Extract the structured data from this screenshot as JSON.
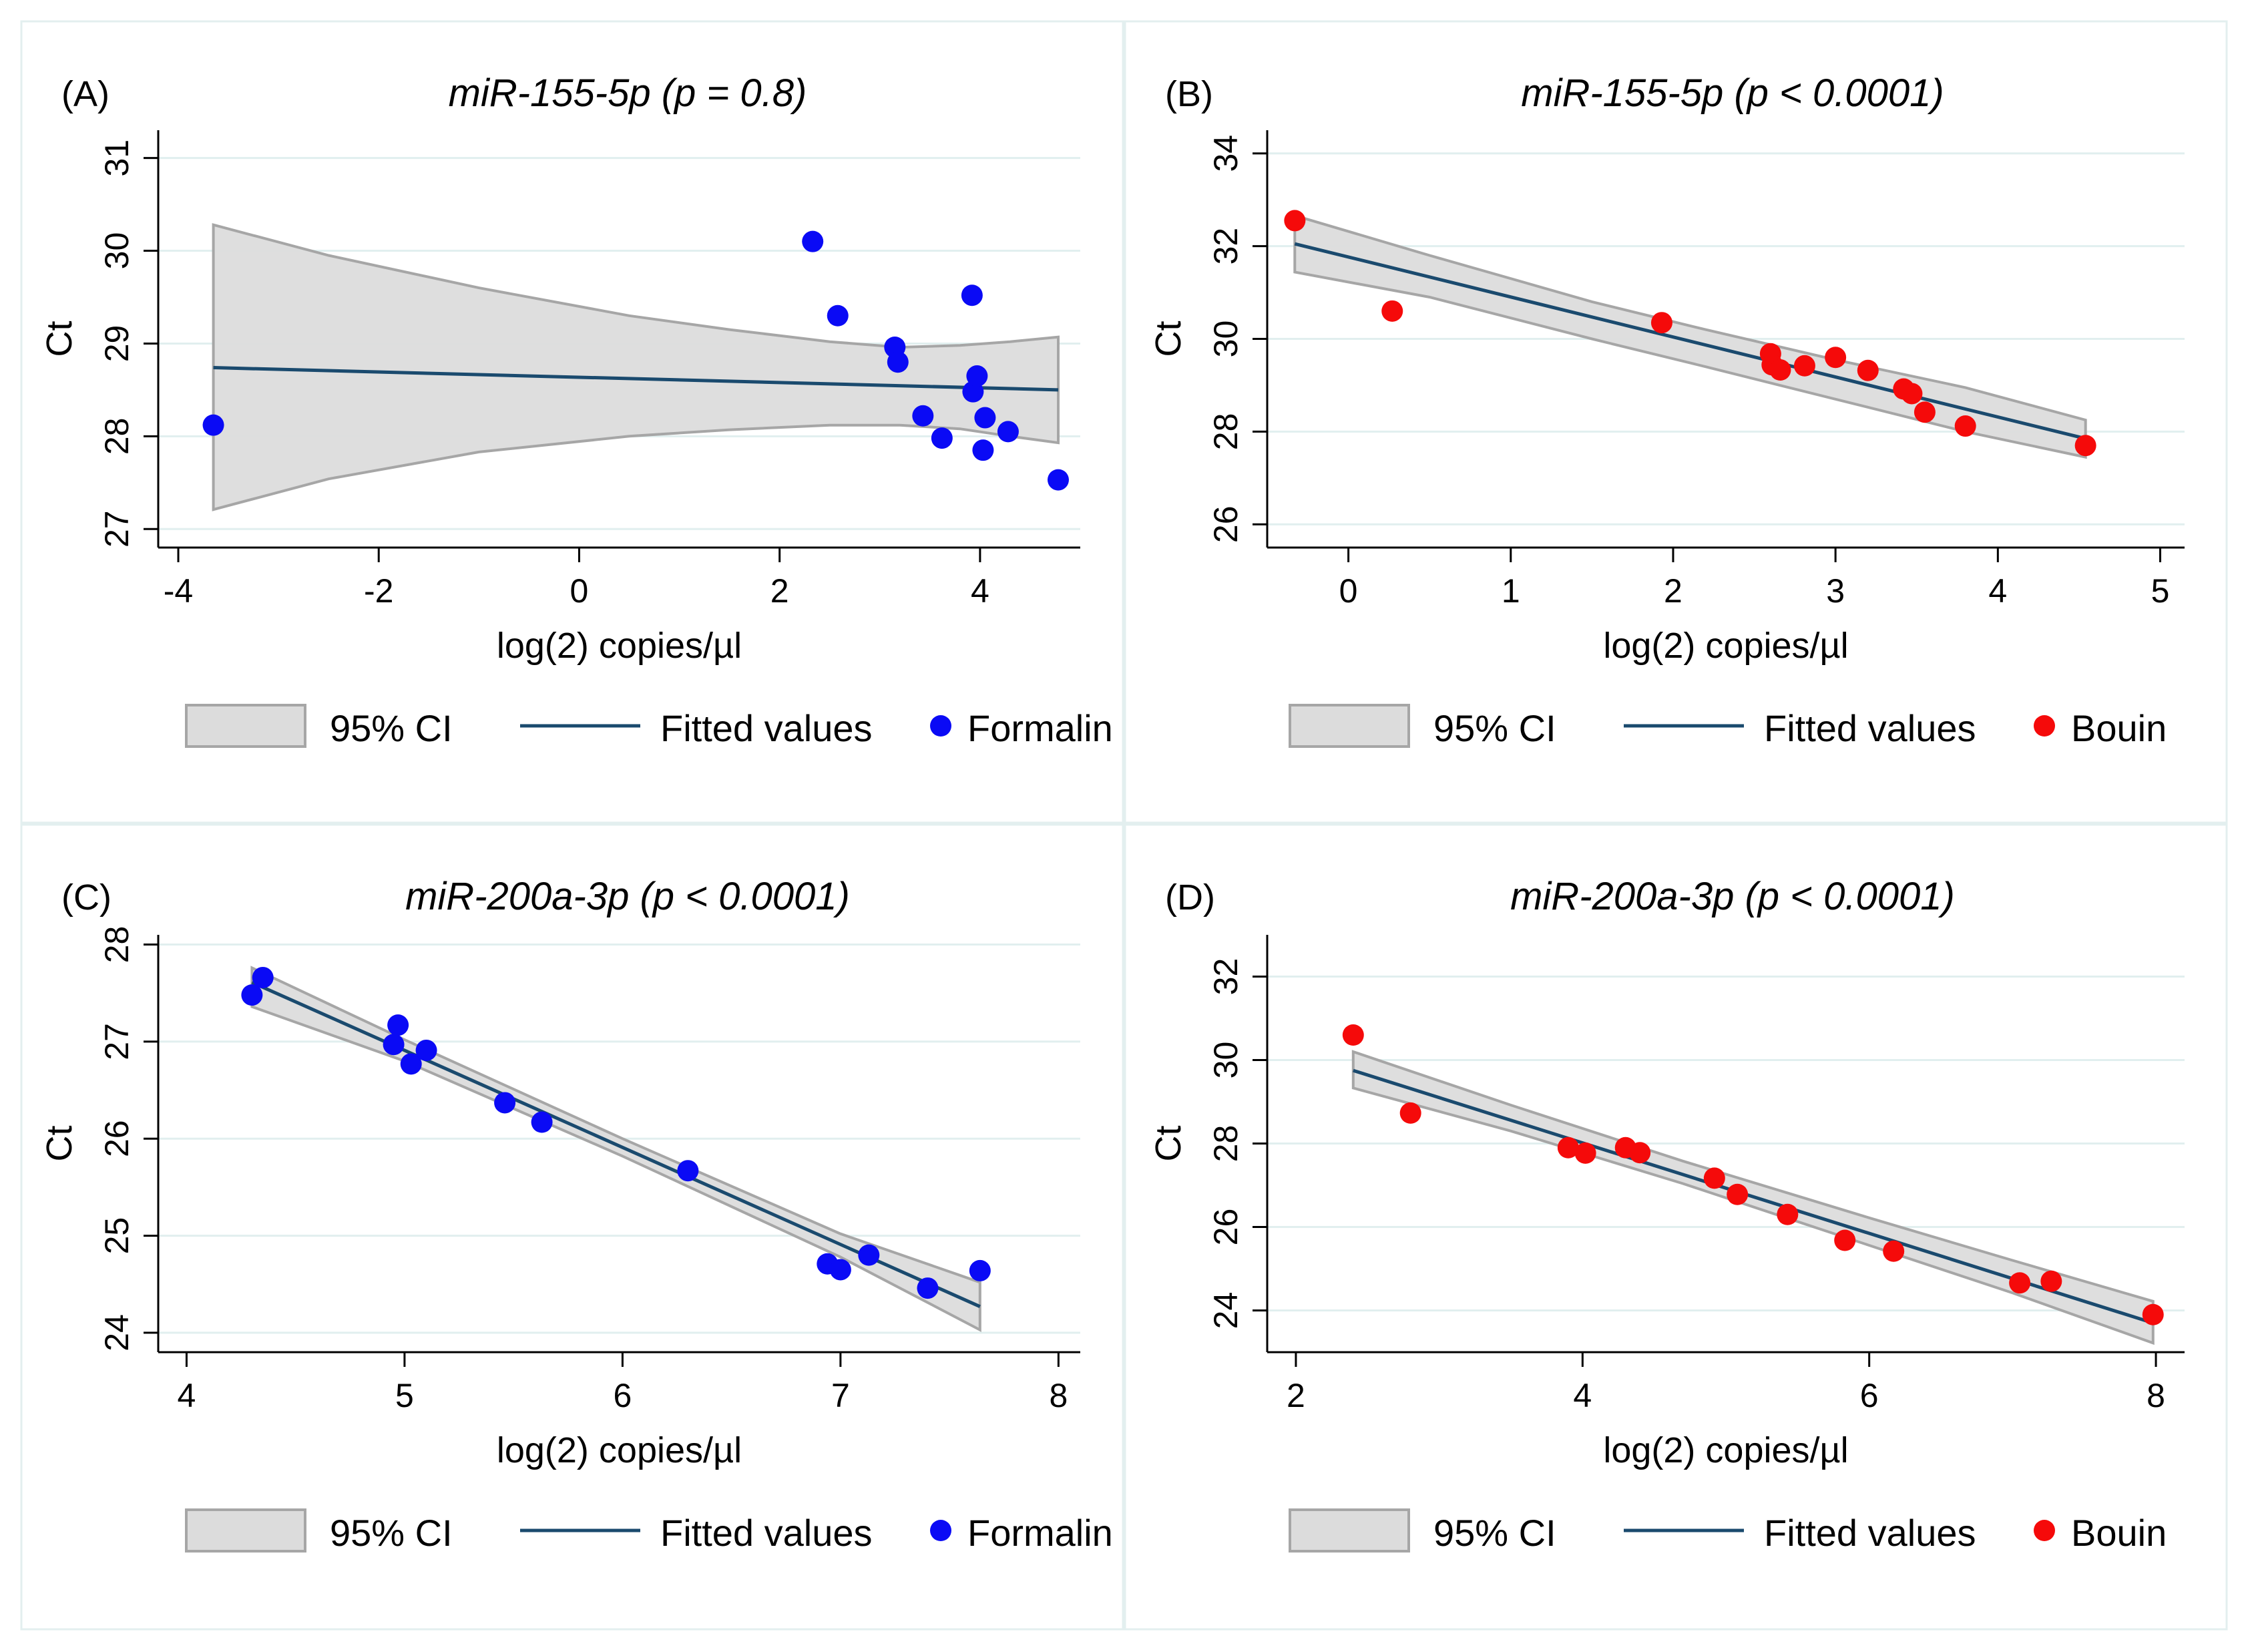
{
  "colors": {
    "formalin": "#0a0af5",
    "bouin": "#f50a0a",
    "fit": "#1a4a6e",
    "ci_fill": "#dcdcdc",
    "ci_stroke": "#a6a6a6"
  },
  "legend": {
    "ci_label": "95% CI",
    "fit_label": "Fitted values"
  },
  "chart_data": [
    {
      "type": "scatter",
      "panel_label": "(A)",
      "title": "miR-155-5p (p = 0.8)",
      "xlabel": "log(2) copies/µl",
      "ylabel": "Ct",
      "xlim": [
        -4.2,
        5.0
      ],
      "ylim": [
        26.8,
        31.3
      ],
      "xticks": [
        -4,
        -2,
        0,
        2,
        4
      ],
      "yticks": [
        27,
        28,
        29,
        30,
        31
      ],
      "series_name": "Formalin",
      "color": "#0a0af5",
      "x": [
        -3.65,
        2.33,
        2.58,
        3.15,
        3.18,
        3.43,
        3.62,
        3.92,
        3.93,
        3.97,
        4.03,
        4.05,
        4.28,
        4.78
      ],
      "y": [
        28.12,
        30.1,
        29.3,
        28.96,
        28.8,
        28.22,
        27.98,
        29.52,
        28.48,
        28.65,
        27.85,
        28.2,
        28.05,
        27.53
      ],
      "fit": {
        "x0": -3.65,
        "x1": 4.78,
        "y0": 28.74,
        "y1": 28.5
      },
      "ci": {
        "x": [
          -3.65,
          -2.5,
          -1.0,
          0.5,
          1.5,
          2.5,
          3.2,
          3.8,
          4.3,
          4.78
        ],
        "upper": [
          30.28,
          29.95,
          29.6,
          29.3,
          29.15,
          29.02,
          28.96,
          28.98,
          29.02,
          29.07
        ],
        "lower": [
          27.21,
          27.54,
          27.83,
          28.0,
          28.07,
          28.12,
          28.12,
          28.08,
          28.0,
          27.93
        ]
      }
    },
    {
      "type": "scatter",
      "panel_label": "(B)",
      "title": "miR-155-5p (p < 0.0001)",
      "xlabel": "log(2) copies/µl",
      "ylabel": "Ct",
      "xlim": [
        -0.5,
        5.15
      ],
      "ylim": [
        25.5,
        34.5
      ],
      "xticks": [
        0,
        1,
        2,
        3,
        4,
        5
      ],
      "yticks": [
        26,
        28,
        30,
        32,
        34
      ],
      "series_name": "Bouin",
      "color": "#f50a0a",
      "x": [
        -0.33,
        0.27,
        1.93,
        2.6,
        2.61,
        2.66,
        2.81,
        3.0,
        3.2,
        3.42,
        3.47,
        3.55,
        3.8,
        4.54
      ],
      "y": [
        32.55,
        30.6,
        30.35,
        29.68,
        29.44,
        29.33,
        29.42,
        29.6,
        29.32,
        28.92,
        28.82,
        28.42,
        28.12,
        27.7
      ],
      "fit": {
        "x0": -0.33,
        "x1": 4.54,
        "y0": 32.05,
        "y1": 27.85
      },
      "ci": {
        "x": [
          -0.33,
          0.5,
          1.5,
          2.2,
          3.0,
          3.8,
          4.54
        ],
        "upper": [
          32.66,
          31.8,
          30.8,
          30.2,
          29.55,
          28.95,
          28.25
        ],
        "lower": [
          31.44,
          30.9,
          30.0,
          29.4,
          28.7,
          28.0,
          27.45
        ]
      }
    },
    {
      "type": "scatter",
      "panel_label": "(C)",
      "title": "miR-200a-3p (p < 0.0001)",
      "xlabel": "log(2) copies/µl",
      "ylabel": "Ct",
      "xlim": [
        3.87,
        8.1
      ],
      "ylim": [
        23.8,
        28.1
      ],
      "xticks": [
        4,
        5,
        6,
        7,
        8
      ],
      "yticks": [
        24,
        25,
        26,
        27,
        28
      ],
      "series_name": "Formalin",
      "color": "#0a0af5",
      "x": [
        4.3,
        4.35,
        4.95,
        4.97,
        5.03,
        5.1,
        5.46,
        5.63,
        6.3,
        6.94,
        7.0,
        7.13,
        7.4,
        7.64
      ],
      "y": [
        27.48,
        27.66,
        26.97,
        27.17,
        26.77,
        26.91,
        26.37,
        26.17,
        25.67,
        24.71,
        24.65,
        24.8,
        24.46,
        24.64
      ],
      "fit": {
        "x0": 4.3,
        "x1": 7.64,
        "y0": 27.61,
        "y1": 24.27
      },
      "ci": {
        "x": [
          4.3,
          5.0,
          6.0,
          7.0,
          7.64
        ],
        "upper": [
          27.76,
          27.02,
          26.0,
          25.02,
          24.52
        ],
        "lower": [
          27.36,
          26.8,
          25.82,
          24.78,
          24.03
        ]
      }
    },
    {
      "type": "scatter",
      "panel_label": "(D)",
      "title": "miR-200a-3p (p < 0.0001)",
      "xlabel": "log(2) copies/µl",
      "ylabel": "Ct",
      "xlim": [
        1.8,
        8.2
      ],
      "ylim": [
        23.0,
        33.0
      ],
      "xticks": [
        2,
        4,
        6,
        8
      ],
      "yticks": [
        24,
        26,
        28,
        30,
        32
      ],
      "series_name": "Bouin",
      "color": "#f50a0a",
      "x": [
        2.4,
        2.8,
        3.9,
        4.02,
        4.3,
        4.4,
        4.92,
        5.08,
        5.43,
        5.83,
        6.17,
        7.05,
        7.27,
        7.98
      ],
      "y": [
        30.6,
        28.73,
        27.9,
        27.77,
        27.9,
        27.78,
        27.17,
        26.78,
        26.3,
        25.68,
        25.42,
        24.66,
        24.7,
        23.9
      ],
      "fit": {
        "x0": 2.4,
        "x1": 7.98,
        "y0": 29.75,
        "y1": 23.7
      },
      "ci": {
        "x": [
          2.4,
          3.5,
          4.7,
          6.0,
          7.0,
          7.98
        ],
        "upper": [
          30.2,
          28.92,
          27.58,
          26.22,
          25.2,
          24.22
        ],
        "lower": [
          29.33,
          28.3,
          27.04,
          25.56,
          24.42,
          23.22
        ]
      }
    }
  ]
}
